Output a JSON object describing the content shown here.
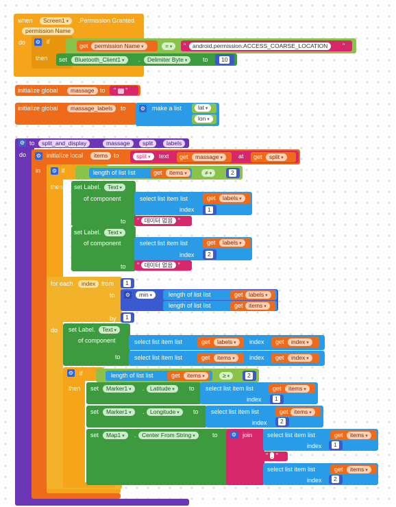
{
  "event": {
    "when": "when",
    "component": "Screen1",
    "event_name": ".Permission Granted",
    "param": "permission Name",
    "do": "do",
    "if": "if",
    "then": "then",
    "get": "get",
    "get_var": "permission Name",
    "op": "=",
    "permission_value": "android.permission.ACCESS_COARSE_LOCATION",
    "set": "set",
    "set_component": "Bluetooth_Client1",
    "set_prop": "Delimiter Byte",
    "to": "to",
    "set_value": "10"
  },
  "globals": {
    "init_label": "initialize global",
    "massage_name": "massage",
    "to": "to",
    "massage_value": "",
    "labels_name": "massage_labels",
    "make_list": "make a list",
    "item_lat": "lat",
    "item_lon": "lon"
  },
  "proc": {
    "to": "to",
    "name": "split_and_display",
    "params": [
      "massage",
      "split",
      "labels"
    ],
    "do": "do",
    "init_local": "initialize local",
    "local_name": "items",
    "to2": "to",
    "split": "split",
    "text": "text",
    "get": "get",
    "massage": "massage",
    "at": "at",
    "split_var": "split",
    "in": "in",
    "if": "if",
    "then": "then",
    "length_of_list": "length of list",
    "list": "list",
    "items": "items",
    "labels": "labels",
    "neq": "≠",
    "two": "2",
    "one": "1",
    "set_label": "set Label.",
    "prop_text": "Text",
    "of_component": "of component",
    "select_list_item": "select list item",
    "index": "index",
    "no_data": "데이터 없음",
    "for_each": "for each",
    "index_var": "index",
    "from": "from",
    "min": "min",
    "by": "by",
    "gte": "≥",
    "marker": "Marker1",
    "latitude": "Latitude",
    "longitude": "Longitude",
    "map": "Map1",
    "center": "Center From String",
    "join": "join",
    "comma": ","
  },
  "colors": {
    "event": "#f6a41a",
    "variable": "#ef6b1c",
    "procedure": "#6b36b4",
    "list": "#2a9be6",
    "text": "#d6276b",
    "math": "#3b5ad0",
    "component": "#3e9a3e",
    "logic": "#8bc34a"
  }
}
